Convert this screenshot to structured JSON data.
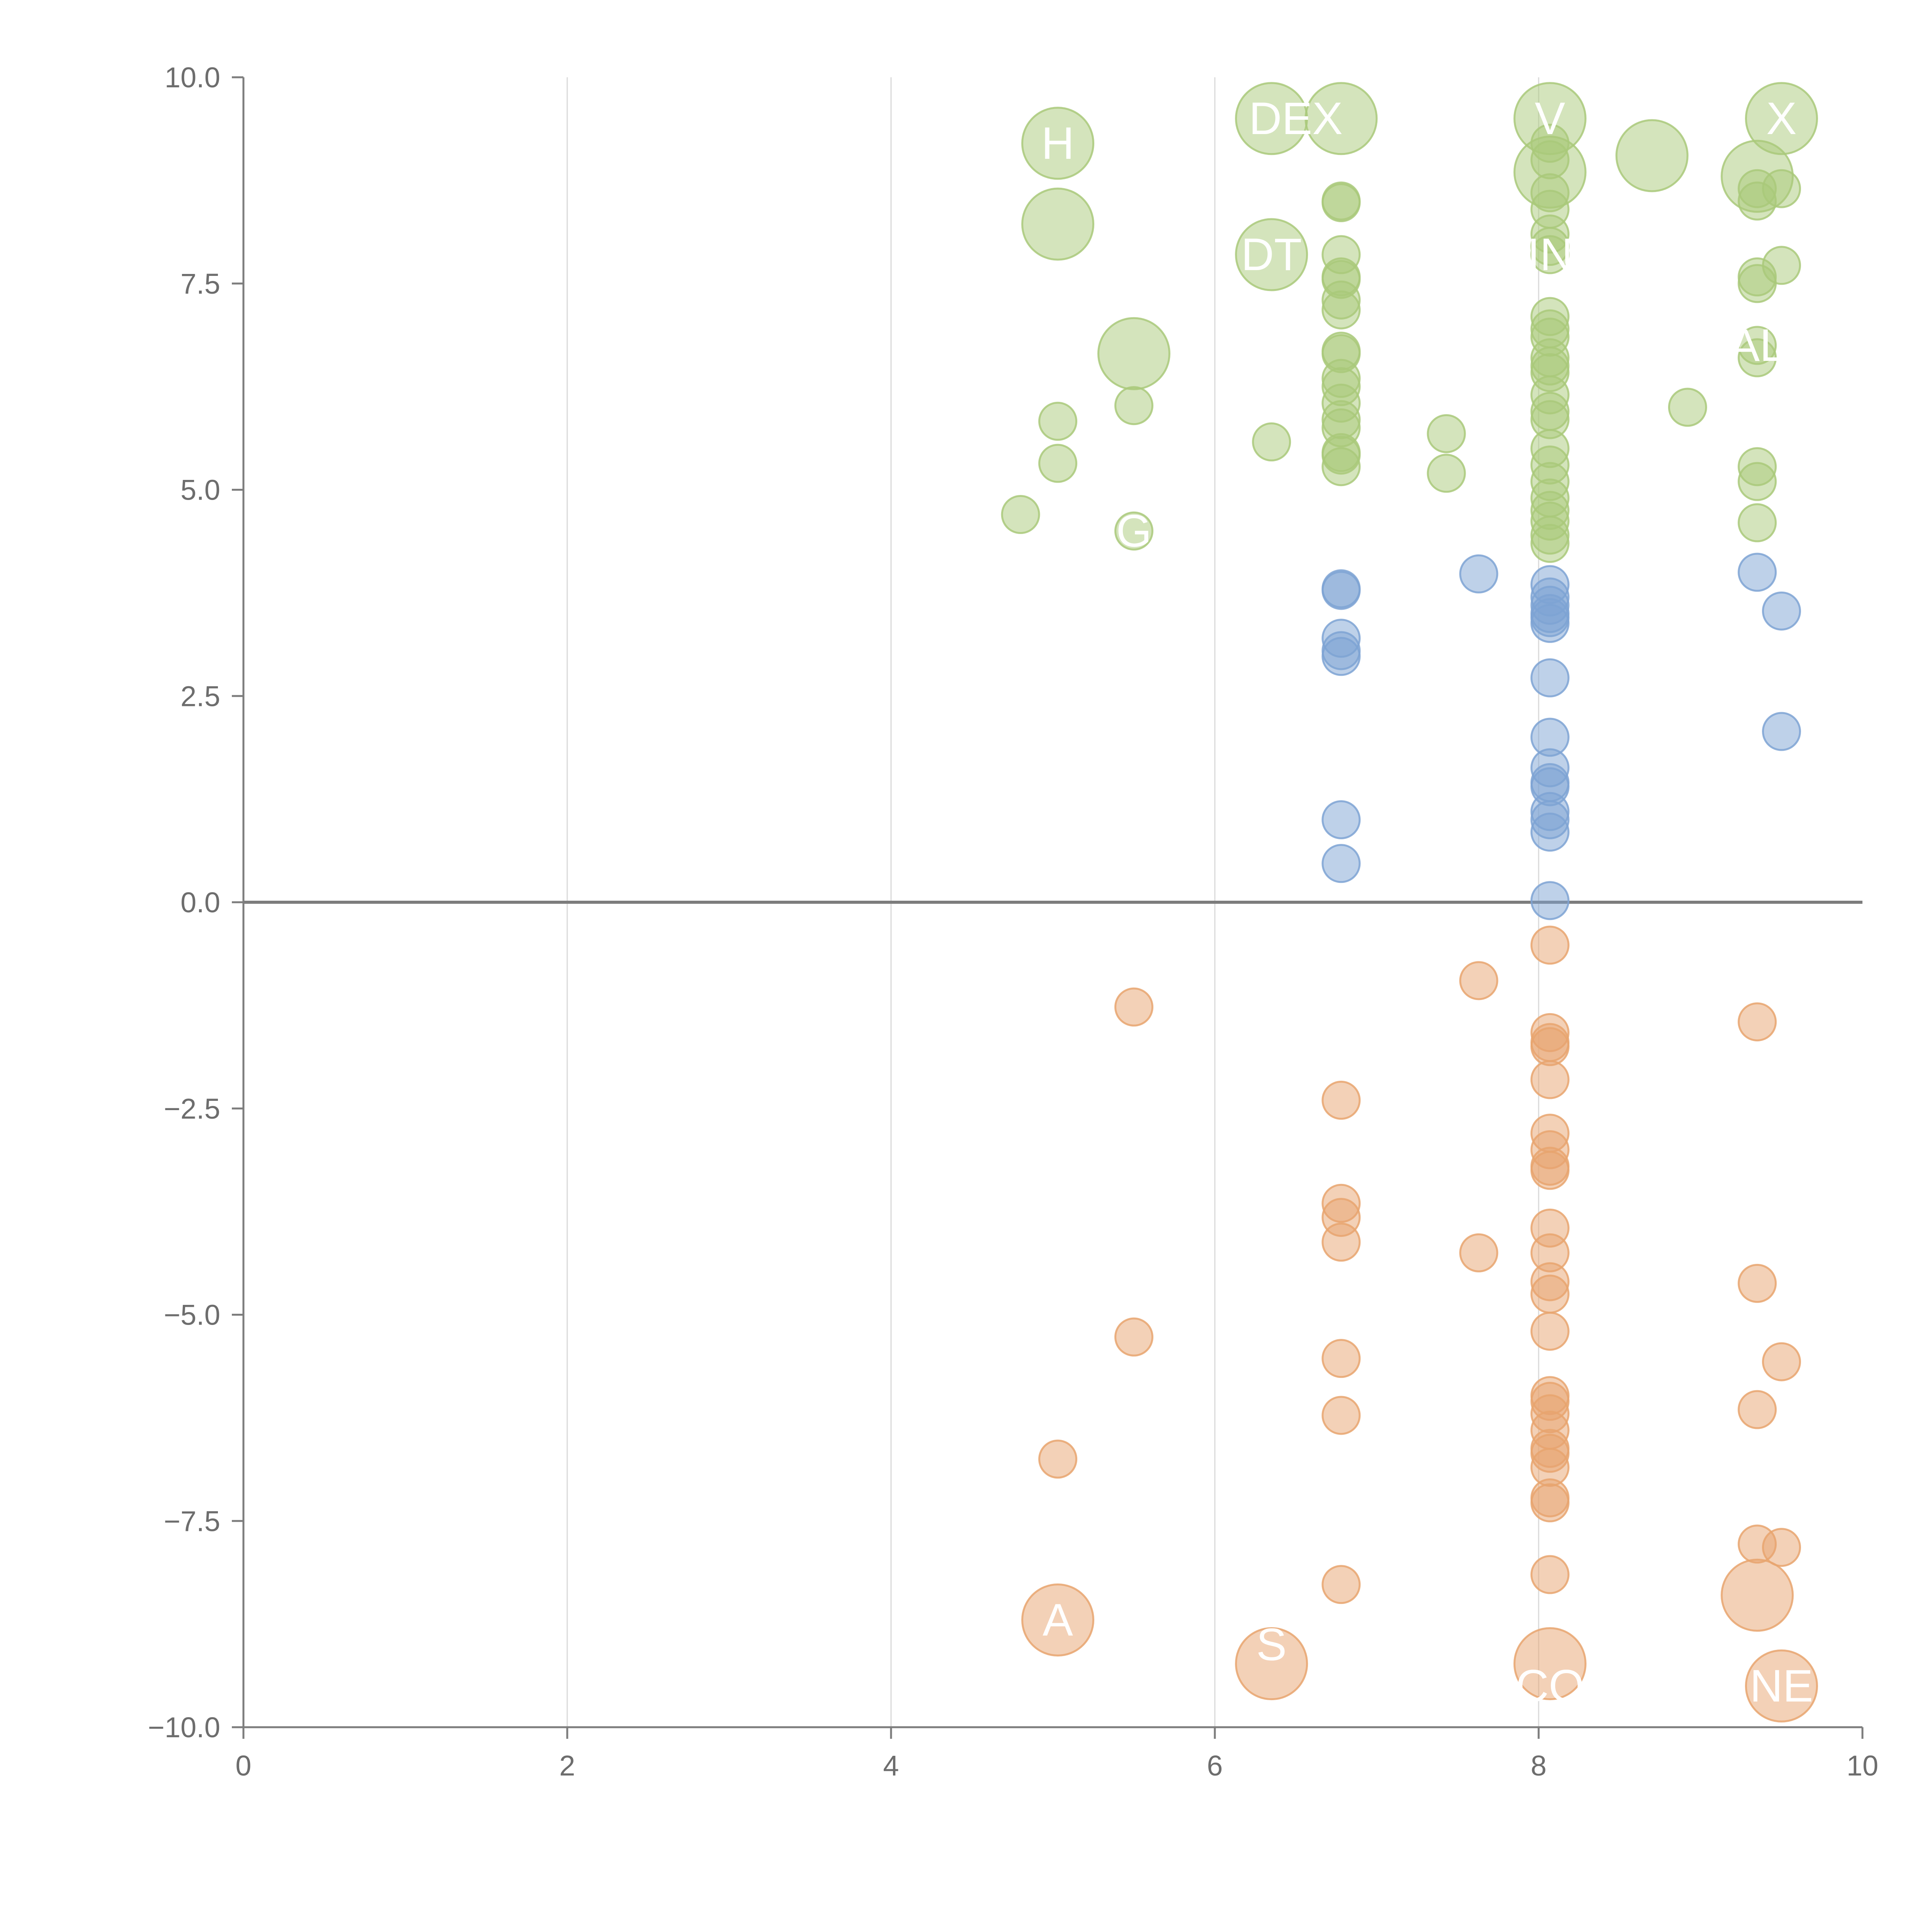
{
  "chart_data": {
    "type": "scatter",
    "title": "",
    "xlabel": "",
    "ylabel": "",
    "xlim": [
      0,
      10
    ],
    "ylim": [
      -10,
      10
    ],
    "x_ticks": [
      "0",
      "2",
      "4",
      "6",
      "8",
      "10"
    ],
    "y_ticks": [
      "10.0",
      "7.5",
      "5.0",
      "2.5",
      "0.0",
      "−2.5",
      "−5.0",
      "−7.5",
      "−10.0"
    ],
    "grid": "vertical",
    "colors": {
      "high": "#a9c97a",
      "mid": "#7ea3d4",
      "low": "#e8a46f",
      "zero_line": "#7d7d7d",
      "grid": "#d9d9d9",
      "axis": "#7d7d7d"
    },
    "series": [
      {
        "name": "high",
        "color_key": "high",
        "points": [
          [
            5.03,
            9.2,
            2
          ],
          [
            5.03,
            8.22,
            2
          ],
          [
            5.5,
            6.65,
            2
          ],
          [
            5.5,
            6.02,
            1
          ],
          [
            5.03,
            5.83,
            1
          ],
          [
            5.03,
            5.32,
            1
          ],
          [
            4.8,
            4.7,
            1
          ],
          [
            5.5,
            4.5,
            1
          ],
          [
            6.35,
            9.5,
            2
          ],
          [
            6.35,
            7.85,
            2
          ],
          [
            6.35,
            5.58,
            1
          ],
          [
            6.78,
            9.5,
            2
          ],
          [
            6.78,
            8.5,
            1
          ],
          [
            6.78,
            8.48,
            1
          ],
          [
            6.78,
            7.85,
            1
          ],
          [
            6.78,
            7.58,
            1
          ],
          [
            6.78,
            7.55,
            1
          ],
          [
            6.78,
            7.3,
            1
          ],
          [
            6.78,
            7.18,
            1
          ],
          [
            6.78,
            6.68,
            1
          ],
          [
            6.78,
            6.65,
            1
          ],
          [
            6.78,
            6.35,
            1
          ],
          [
            6.78,
            6.25,
            1
          ],
          [
            6.78,
            6.05,
            1
          ],
          [
            6.78,
            5.85,
            1
          ],
          [
            6.78,
            5.75,
            1
          ],
          [
            6.78,
            5.45,
            1
          ],
          [
            6.78,
            5.42,
            1
          ],
          [
            6.78,
            5.28,
            1
          ],
          [
            7.43,
            5.68,
            1
          ],
          [
            7.43,
            5.2,
            1
          ],
          [
            8.07,
            9.5,
            2
          ],
          [
            8.07,
            8.85,
            2
          ],
          [
            8.07,
            9.2,
            1
          ],
          [
            8.07,
            9.0,
            1
          ],
          [
            8.07,
            8.6,
            1
          ],
          [
            8.07,
            8.4,
            1
          ],
          [
            8.07,
            8.1,
            1
          ],
          [
            8.07,
            7.95,
            1
          ],
          [
            8.07,
            7.85,
            1
          ],
          [
            8.07,
            7.1,
            1
          ],
          [
            8.07,
            6.95,
            1
          ],
          [
            8.07,
            6.85,
            1
          ],
          [
            8.07,
            6.6,
            1
          ],
          [
            8.07,
            6.5,
            1
          ],
          [
            8.07,
            6.42,
            1
          ],
          [
            8.07,
            6.15,
            1
          ],
          [
            8.07,
            5.95,
            1
          ],
          [
            8.07,
            5.85,
            1
          ],
          [
            8.07,
            5.5,
            1
          ],
          [
            8.07,
            5.3,
            1
          ],
          [
            8.07,
            5.1,
            1
          ],
          [
            8.07,
            4.9,
            1
          ],
          [
            8.07,
            4.75,
            1
          ],
          [
            8.07,
            4.62,
            1
          ],
          [
            8.07,
            4.45,
            1
          ],
          [
            8.07,
            4.35,
            1
          ],
          [
            8.7,
            9.05,
            2
          ],
          [
            8.92,
            6.0,
            1
          ],
          [
            9.35,
            8.8,
            2
          ],
          [
            9.35,
            8.65,
            1
          ],
          [
            9.35,
            8.5,
            1
          ],
          [
            9.35,
            7.58,
            1
          ],
          [
            9.35,
            7.5,
            1
          ],
          [
            9.35,
            6.75,
            1
          ],
          [
            9.35,
            6.6,
            1
          ],
          [
            9.35,
            5.28,
            1
          ],
          [
            9.35,
            5.1,
            1
          ],
          [
            9.35,
            4.6,
            1
          ],
          [
            9.5,
            9.5,
            2
          ],
          [
            9.5,
            8.65,
            1
          ],
          [
            9.5,
            7.72,
            1
          ]
        ]
      },
      {
        "name": "mid",
        "color_key": "mid",
        "points": [
          [
            6.78,
            3.8,
            1
          ],
          [
            6.78,
            3.78,
            1
          ],
          [
            6.78,
            3.2,
            1
          ],
          [
            6.78,
            3.05,
            1
          ],
          [
            6.78,
            2.98,
            1
          ],
          [
            6.78,
            1.0,
            1
          ],
          [
            6.78,
            0.47,
            1
          ],
          [
            7.63,
            3.98,
            1
          ],
          [
            8.07,
            3.85,
            1
          ],
          [
            8.07,
            3.7,
            1
          ],
          [
            8.07,
            3.6,
            1
          ],
          [
            8.07,
            3.5,
            1
          ],
          [
            8.07,
            3.45,
            1
          ],
          [
            8.07,
            3.38,
            1
          ],
          [
            8.07,
            2.72,
            1
          ],
          [
            8.07,
            2.0,
            1
          ],
          [
            8.07,
            1.63,
            1
          ],
          [
            8.07,
            1.45,
            1
          ],
          [
            8.07,
            1.4,
            1
          ],
          [
            8.07,
            1.1,
            1
          ],
          [
            8.07,
            1.0,
            1
          ],
          [
            8.07,
            0.85,
            1
          ],
          [
            8.07,
            0.02,
            1
          ],
          [
            9.35,
            4.0,
            1
          ],
          [
            9.5,
            3.53,
            1
          ],
          [
            9.5,
            2.07,
            1
          ]
        ]
      },
      {
        "name": "low",
        "color_key": "low",
        "points": [
          [
            5.03,
            -6.75,
            1
          ],
          [
            5.03,
            -8.7,
            2
          ],
          [
            5.5,
            -1.27,
            1
          ],
          [
            5.5,
            -5.27,
            1
          ],
          [
            6.35,
            -9.23,
            2
          ],
          [
            6.78,
            -2.4,
            1
          ],
          [
            6.78,
            -3.65,
            1
          ],
          [
            6.78,
            -3.82,
            1
          ],
          [
            6.78,
            -4.12,
            1
          ],
          [
            6.78,
            -5.53,
            1
          ],
          [
            6.78,
            -6.22,
            1
          ],
          [
            6.78,
            -8.27,
            1
          ],
          [
            7.63,
            -0.95,
            1
          ],
          [
            7.63,
            -4.25,
            1
          ],
          [
            8.07,
            -0.52,
            1
          ],
          [
            8.07,
            -1.58,
            1
          ],
          [
            8.07,
            -1.7,
            1
          ],
          [
            8.07,
            -1.75,
            1
          ],
          [
            8.07,
            -2.15,
            1
          ],
          [
            8.07,
            -2.8,
            1
          ],
          [
            8.07,
            -3.0,
            1
          ],
          [
            8.07,
            -3.2,
            1
          ],
          [
            8.07,
            -3.25,
            1
          ],
          [
            8.07,
            -3.95,
            1
          ],
          [
            8.07,
            -4.25,
            1
          ],
          [
            8.07,
            -4.6,
            1
          ],
          [
            8.07,
            -4.75,
            1
          ],
          [
            8.07,
            -5.2,
            1
          ],
          [
            8.07,
            -5.98,
            1
          ],
          [
            8.07,
            -6.05,
            1
          ],
          [
            8.07,
            -6.2,
            1
          ],
          [
            8.07,
            -6.4,
            1
          ],
          [
            8.07,
            -6.62,
            1
          ],
          [
            8.07,
            -6.68,
            1
          ],
          [
            8.07,
            -6.85,
            1
          ],
          [
            8.07,
            -7.22,
            1
          ],
          [
            8.07,
            -7.28,
            1
          ],
          [
            8.07,
            -8.15,
            1
          ],
          [
            8.07,
            -9.23,
            2
          ],
          [
            9.35,
            -1.45,
            1
          ],
          [
            9.35,
            -4.62,
            1
          ],
          [
            9.35,
            -6.15,
            1
          ],
          [
            9.35,
            -7.78,
            1
          ],
          [
            9.35,
            -8.4,
            2
          ],
          [
            9.5,
            -5.57,
            1
          ],
          [
            9.5,
            -7.82,
            1
          ],
          [
            9.5,
            -9.5,
            2
          ]
        ]
      }
    ],
    "labels": [
      {
        "text": "H",
        "x": 5.03,
        "y": 9.2
      },
      {
        "text": "DEX",
        "x": 6.5,
        "y": 9.5
      },
      {
        "text": "V",
        "x": 8.07,
        "y": 9.5
      },
      {
        "text": "X",
        "x": 9.5,
        "y": 9.5
      },
      {
        "text": "DT",
        "x": 6.35,
        "y": 7.85
      },
      {
        "text": "IN",
        "x": 8.07,
        "y": 7.85
      },
      {
        "text": "AL",
        "x": 9.35,
        "y": 6.75
      },
      {
        "text": "G",
        "x": 5.5,
        "y": 4.5
      },
      {
        "text": "A",
        "x": 5.03,
        "y": -8.7
      },
      {
        "text": "S",
        "x": 6.35,
        "y": -9.0
      },
      {
        "text": "CO",
        "x": 8.07,
        "y": -9.5
      },
      {
        "text": "NE",
        "x": 9.5,
        "y": -9.5
      }
    ]
  }
}
